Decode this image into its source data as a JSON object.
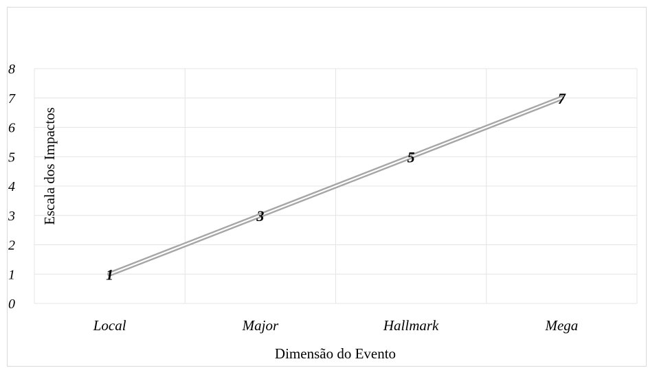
{
  "chart_data": {
    "type": "line",
    "categories": [
      "Local",
      "Major",
      "Hallmark",
      "Mega"
    ],
    "series": [
      {
        "values": [
          1,
          3,
          5,
          7
        ]
      }
    ],
    "data_labels": [
      "1",
      "3",
      "5",
      "7"
    ],
    "y_ticks": [
      "0",
      "1",
      "2",
      "3",
      "4",
      "5",
      "6",
      "7",
      "8"
    ],
    "ylim": [
      0,
      8
    ],
    "xlabel": "Dimensão do Evento",
    "ylabel": "Escala dos Impactos",
    "grid": true,
    "line_color": "#a6a6a6",
    "grid_color": "#e4e4e4"
  }
}
